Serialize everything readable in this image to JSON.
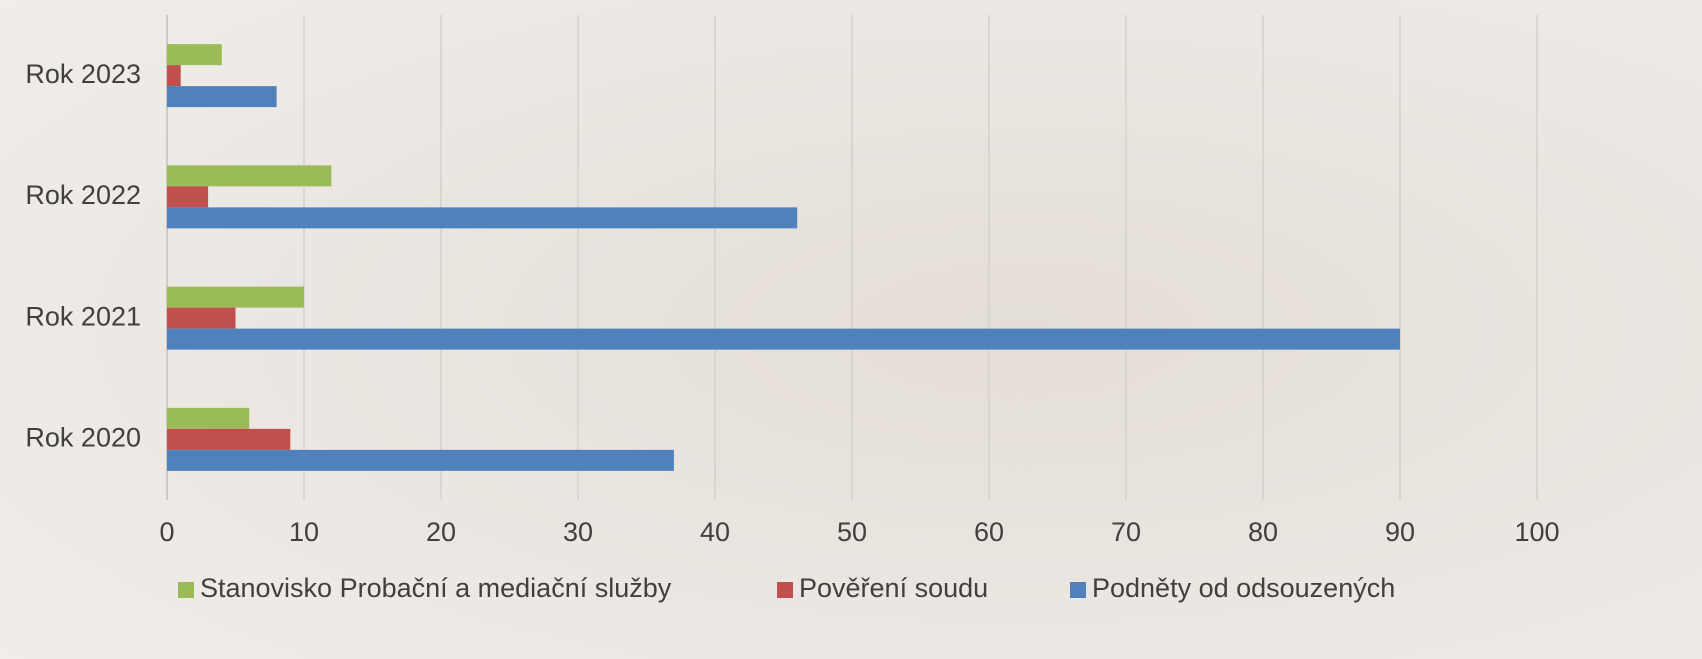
{
  "chart_data": {
    "type": "bar",
    "orientation": "horizontal",
    "categories": [
      "Rok 2020",
      "Rok 2021",
      "Rok 2022",
      "Rok 2023"
    ],
    "series": [
      {
        "name": "Stanovisko Probační a mediační služby",
        "color": "#9bbb59",
        "values": [
          6,
          10,
          12,
          4
        ]
      },
      {
        "name": "Pověření soudu",
        "color": "#c0504d",
        "values": [
          9,
          5,
          3,
          1
        ]
      },
      {
        "name": "Podněty od odsouzených",
        "color": "#4f81bd",
        "values": [
          37,
          90,
          46,
          8
        ]
      }
    ],
    "xlim": [
      0,
      100
    ],
    "xticks": [
      0,
      10,
      20,
      30,
      40,
      50,
      60,
      70,
      80,
      90,
      100
    ],
    "grid": true,
    "legend": "bottom"
  }
}
